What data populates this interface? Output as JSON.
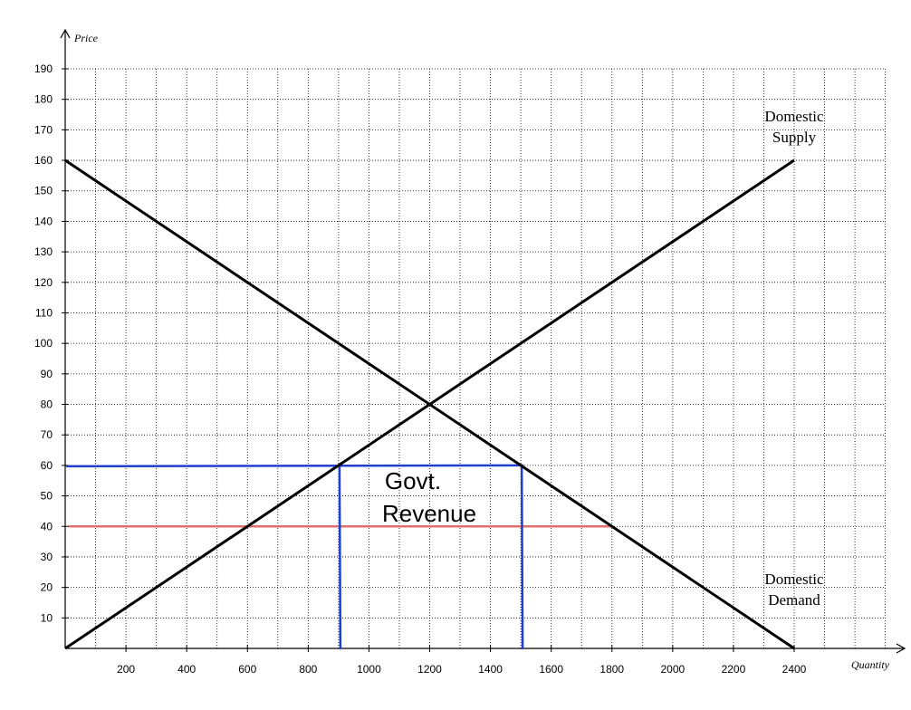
{
  "chart_data": {
    "type": "line",
    "xlabel": "Quantity",
    "ylabel": "Price",
    "xlim": [
      0,
      2700
    ],
    "ylim": [
      0,
      190
    ],
    "x_ticks": [
      200,
      400,
      600,
      800,
      1000,
      1200,
      1400,
      1600,
      1800,
      2000,
      2200,
      2400
    ],
    "y_ticks": [
      10,
      20,
      30,
      40,
      50,
      60,
      70,
      80,
      90,
      100,
      110,
      120,
      130,
      140,
      150,
      160,
      170,
      180,
      190
    ],
    "grid": true,
    "series": [
      {
        "name": "Domestic Supply",
        "points": [
          [
            0,
            0
          ],
          [
            2400,
            160
          ]
        ]
      },
      {
        "name": "Domestic Demand",
        "points": [
          [
            0,
            160
          ],
          [
            2400,
            0
          ]
        ]
      }
    ],
    "curve_labels": [
      {
        "series": "Domestic Supply",
        "lines": [
          "Domestic",
          "Supply"
        ]
      },
      {
        "series": "Domestic Demand",
        "lines": [
          "Domestic",
          "Demand"
        ]
      }
    ],
    "annotations": {
      "tariff_price": {
        "price": 60,
        "from_q": 0,
        "to_q": 1500,
        "color": "#1f3fd0"
      },
      "world_price": {
        "price": 40,
        "from_q": 0,
        "to_q": 1800,
        "color": "#e07070"
      },
      "verticals": [
        {
          "q": 900,
          "from_price": 0,
          "to_price": 60,
          "color": "#1f3fd0"
        },
        {
          "q": 1500,
          "from_price": 0,
          "to_price": 60,
          "color": "#1f3fd0"
        }
      ],
      "label_lines": [
        "Govt.",
        "Revenue"
      ]
    }
  }
}
